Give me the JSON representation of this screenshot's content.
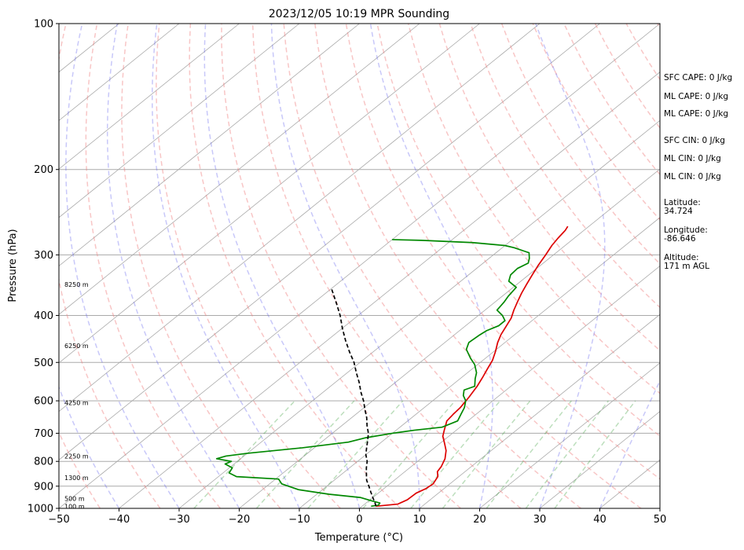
{
  "chart_data": {
    "type": "skew-t",
    "title": "2023/12/05 10:19 MPR Sounding",
    "xlabel": "Temperature (°C)",
    "ylabel": "Pressure (hPa)",
    "xlim": [
      -50,
      50
    ],
    "ylim": [
      1000,
      100
    ],
    "y_scale": "log",
    "x_ticks": [
      "−50",
      "−40",
      "−30",
      "−20",
      "−10",
      "0",
      "10",
      "20",
      "30",
      "40",
      "50"
    ],
    "y_ticks": [
      {
        "p": 100,
        "label": "100"
      },
      {
        "p": 200,
        "label": "200"
      },
      {
        "p": 300,
        "label": "300"
      },
      {
        "p": 400,
        "label": "400"
      },
      {
        "p": 500,
        "label": "500"
      },
      {
        "p": 600,
        "label": "600"
      },
      {
        "p": 700,
        "label": "700"
      },
      {
        "p": 800,
        "label": "800"
      },
      {
        "p": 900,
        "label": "900"
      },
      {
        "p": 1000,
        "label": "1000"
      }
    ],
    "height_labels": [
      {
        "p": 990,
        "text": "100 m"
      },
      {
        "p": 955,
        "text": "500 m"
      },
      {
        "p": 865,
        "text": "1300 m"
      },
      {
        "p": 780,
        "text": "2250 m"
      },
      {
        "p": 605,
        "text": "4250 m"
      },
      {
        "p": 462,
        "text": "6250 m"
      },
      {
        "p": 345,
        "text": "8250 m"
      }
    ],
    "series": [
      {
        "color": "#dd0000",
        "points": [
          [
            2.3,
            990
          ],
          [
            5.5,
            980
          ],
          [
            6.2,
            960
          ],
          [
            6.3,
            930
          ],
          [
            7.0,
            910
          ],
          [
            7.2,
            890
          ],
          [
            6.5,
            860
          ],
          [
            5.4,
            840
          ],
          [
            5.0,
            820
          ],
          [
            4.0,
            790
          ],
          [
            2.5,
            760
          ],
          [
            0.8,
            735
          ],
          [
            -1.0,
            710
          ],
          [
            -2.0,
            690
          ],
          [
            -3.5,
            660
          ],
          [
            -3.8,
            640
          ],
          [
            -4.0,
            620
          ],
          [
            -4.7,
            590
          ],
          [
            -5.6,
            560
          ],
          [
            -6.6,
            535
          ],
          [
            -7.5,
            515
          ],
          [
            -8.4,
            495
          ],
          [
            -9.7,
            475
          ],
          [
            -11.2,
            455
          ],
          [
            -12.3,
            438
          ],
          [
            -13.1,
            422
          ],
          [
            -14.0,
            405
          ],
          [
            -15.2,
            390
          ],
          [
            -16.3,
            375
          ],
          [
            -17.4,
            360
          ],
          [
            -18.4,
            345
          ],
          [
            -19.4,
            330
          ],
          [
            -20.4,
            315
          ],
          [
            -21.3,
            300
          ],
          [
            -22.2,
            287
          ],
          [
            -22.7,
            277
          ],
          [
            -23.1,
            267
          ],
          [
            -23.5,
            262
          ]
        ]
      },
      {
        "color": "#008800",
        "points": [
          [
            1.5,
            990
          ],
          [
            2.5,
            985
          ],
          [
            2.3,
            975
          ],
          [
            0.5,
            965
          ],
          [
            -2.0,
            950
          ],
          [
            -8.0,
            935
          ],
          [
            -14.0,
            915
          ],
          [
            -18.0,
            890
          ],
          [
            -19.5,
            870
          ],
          [
            -27.0,
            860
          ],
          [
            -29.0,
            845
          ],
          [
            -29.5,
            825
          ],
          [
            -31.5,
            810
          ],
          [
            -31.0,
            800
          ],
          [
            -34.0,
            790
          ],
          [
            -33.0,
            780
          ],
          [
            -30.0,
            770
          ],
          [
            -22.0,
            750
          ],
          [
            -15.5,
            730
          ],
          [
            -13.5,
            715
          ],
          [
            -10.0,
            700
          ],
          [
            -7.0,
            690
          ],
          [
            -3.0,
            680
          ],
          [
            -1.7,
            660
          ],
          [
            -2.5,
            640
          ],
          [
            -3.3,
            620
          ],
          [
            -4.5,
            600
          ],
          [
            -6.0,
            585
          ],
          [
            -7.0,
            570
          ],
          [
            -6.0,
            560
          ],
          [
            -7.5,
            540
          ],
          [
            -8.5,
            525
          ],
          [
            -10.5,
            505
          ],
          [
            -12.5,
            490
          ],
          [
            -15.0,
            470
          ],
          [
            -16.0,
            455
          ],
          [
            -15.8,
            440
          ],
          [
            -15.5,
            430
          ],
          [
            -14.5,
            420
          ],
          [
            -14.5,
            410
          ],
          [
            -16.0,
            400
          ],
          [
            -18.0,
            390
          ],
          [
            -18.5,
            375
          ],
          [
            -19.0,
            365
          ],
          [
            -19.5,
            350
          ],
          [
            -22.0,
            340
          ],
          [
            -23.0,
            330
          ],
          [
            -23.2,
            320
          ],
          [
            -22.5,
            312
          ],
          [
            -23.3,
            305
          ],
          [
            -24.5,
            297
          ],
          [
            -25.5,
            295
          ],
          [
            -28.0,
            290
          ],
          [
            -30.0,
            287
          ],
          [
            -36.0,
            283
          ],
          [
            -45.0,
            280
          ],
          [
            -50.0,
            279
          ]
        ]
      },
      {
        "color": "#000000",
        "dashed": true,
        "points": [
          [
            2.3,
            990
          ],
          [
            1.5,
            975
          ],
          [
            0.0,
            950
          ],
          [
            -1.5,
            925
          ],
          [
            -3.0,
            900
          ],
          [
            -4.6,
            875
          ],
          [
            -5.9,
            850
          ],
          [
            -7.2,
            825
          ],
          [
            -8.4,
            800
          ],
          [
            -10.0,
            775
          ],
          [
            -11.3,
            750
          ],
          [
            -12.6,
            725
          ],
          [
            -14.0,
            700
          ],
          [
            -15.8,
            675
          ],
          [
            -17.5,
            650
          ],
          [
            -19.5,
            625
          ],
          [
            -21.5,
            600
          ],
          [
            -23.8,
            575
          ],
          [
            -26.0,
            550
          ],
          [
            -28.5,
            525
          ],
          [
            -31.0,
            500
          ],
          [
            -34.0,
            475
          ],
          [
            -37.0,
            450
          ],
          [
            -40.0,
            425
          ],
          [
            -43.0,
            400
          ],
          [
            -46.5,
            375
          ],
          [
            -50.0,
            352
          ]
        ]
      }
    ],
    "dry_adiabats_theta_K": [
      230,
      240,
      250,
      260,
      270,
      280,
      290,
      300,
      310,
      320,
      330,
      340,
      350,
      360,
      370,
      380,
      390,
      400,
      410,
      420,
      430,
      440,
      450,
      460
    ],
    "moist_adiabats_surface_C": [
      -40,
      -30,
      -20,
      -10,
      0,
      10,
      20,
      30,
      40
    ],
    "mixing_ratio_lines_gkg": [
      0.4,
      1,
      2,
      4,
      7,
      10,
      16,
      24,
      32
    ],
    "stats": [
      {
        "label": "SFC CAPE: 0 J/kg"
      },
      {
        "label": "ML CAPE: 0 J/kg"
      },
      {
        "label": "ML CAPE: 0 J/kg"
      },
      {
        "label": "SFC CIN: 0 J/kg"
      },
      {
        "label": "ML CIN: 0 J/kg"
      },
      {
        "label": "ML CIN: 0 J/kg"
      },
      {
        "label": "Latitude:",
        "value": "34.724"
      },
      {
        "label": "Longitude:",
        "value": "-86.646"
      },
      {
        "label": "Altitude:",
        "value": "171 m AGL"
      }
    ]
  }
}
